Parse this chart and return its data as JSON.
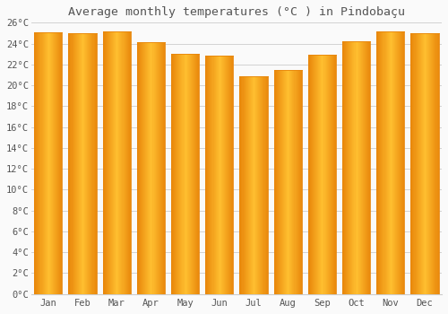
{
  "title": "Average monthly temperatures (°C ) in Pindobaçu",
  "months": [
    "Jan",
    "Feb",
    "Mar",
    "Apr",
    "May",
    "Jun",
    "Jul",
    "Aug",
    "Sep",
    "Oct",
    "Nov",
    "Dec"
  ],
  "values": [
    25.1,
    25.0,
    25.2,
    24.1,
    23.0,
    22.8,
    20.9,
    21.5,
    22.9,
    24.2,
    25.2,
    25.0
  ],
  "bar_color_left": "#E8860A",
  "bar_color_center": "#FFBF30",
  "bar_color_right": "#E8860A",
  "background_color": "#FAFAFA",
  "grid_color": "#CCCCCC",
  "text_color": "#555555",
  "ylim": [
    0,
    26
  ],
  "ytick_step": 2,
  "title_fontsize": 9.5
}
